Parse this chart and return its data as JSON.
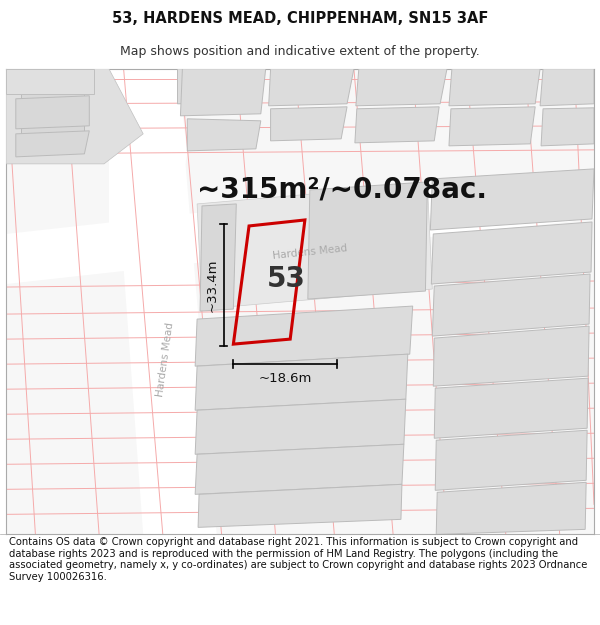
{
  "title": "53, HARDENS MEAD, CHIPPENHAM, SN15 3AF",
  "subtitle": "Map shows position and indicative extent of the property.",
  "area_text": "~315m²/~0.078ac.",
  "label_53": "53",
  "dim_width": "~18.6m",
  "dim_height": "~33.4m",
  "footer": "Contains OS data © Crown copyright and database right 2021. This information is subject to Crown copyright and database rights 2023 and is reproduced with the permission of HM Land Registry. The polygons (including the associated geometry, namely x, y co-ordinates) are subject to Crown copyright and database rights 2023 Ordnance Survey 100026316.",
  "bg_color": "#f7f7f7",
  "road_color": "#ffffff",
  "building_color": "#dcdcdc",
  "building_outline": "#bbbbbb",
  "red_line_color": "#cc0000",
  "pink_line_color": "#f5aaaa",
  "title_fontsize": 10.5,
  "subtitle_fontsize": 9,
  "area_fontsize": 20,
  "label_fontsize": 20,
  "dim_fontsize": 9.5,
  "footer_fontsize": 7.2,
  "map_border_color": "#aaaaaa"
}
